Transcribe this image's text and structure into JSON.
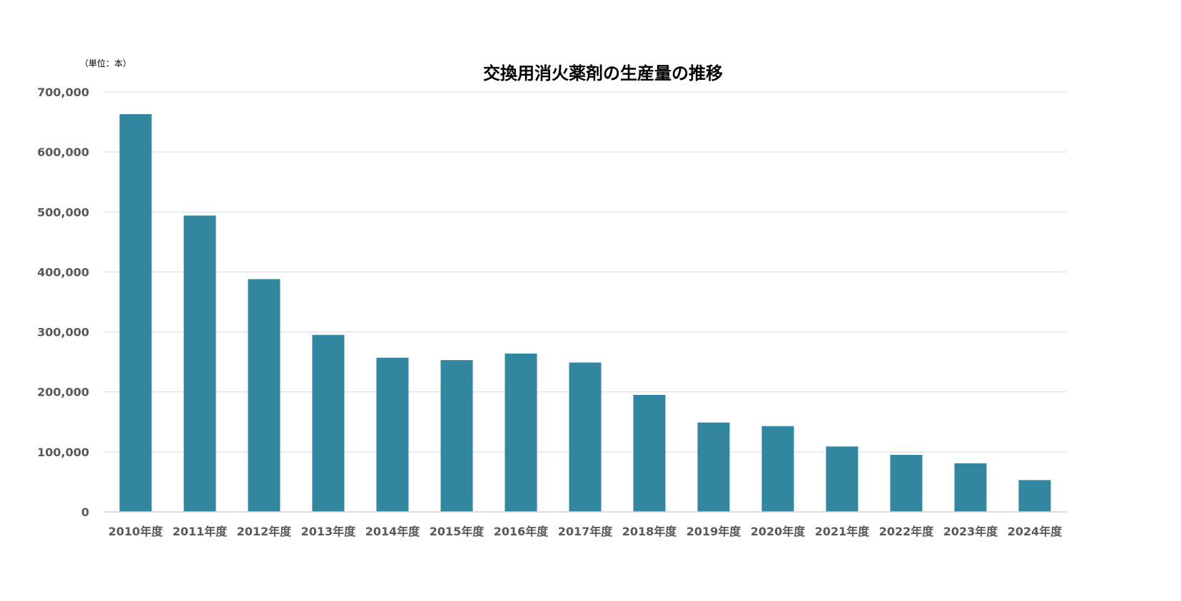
{
  "chart_data": {
    "type": "bar",
    "title": "交換用消火薬剤の生産量の推移",
    "unit_label": "（単位：本）",
    "xlabel": "",
    "ylabel": "",
    "categories": [
      "2010年度",
      "2011年度",
      "2012年度",
      "2013年度",
      "2014年度",
      "2015年度",
      "2016年度",
      "2017年度",
      "2018年度",
      "2019年度",
      "2020年度",
      "2021年度",
      "2022年度",
      "2023年度",
      "2024年度"
    ],
    "series": [
      {
        "values": [
          663000,
          494000,
          388000,
          295000,
          257000,
          253000,
          264000,
          249000,
          195000,
          149000,
          143000,
          109000,
          95000,
          81000,
          53000
        ]
      }
    ],
    "y_ticks": [
      "0",
      "100,000",
      "200,000",
      "300,000",
      "400,000",
      "500,000",
      "600,000",
      "700,000"
    ],
    "ylim": [
      0,
      700000
    ],
    "grid": true,
    "legend": "none",
    "colors": {
      "bar": "#32869f",
      "grid": "#d9d9d9",
      "axis_text": "#595959",
      "title": "#000000"
    }
  }
}
